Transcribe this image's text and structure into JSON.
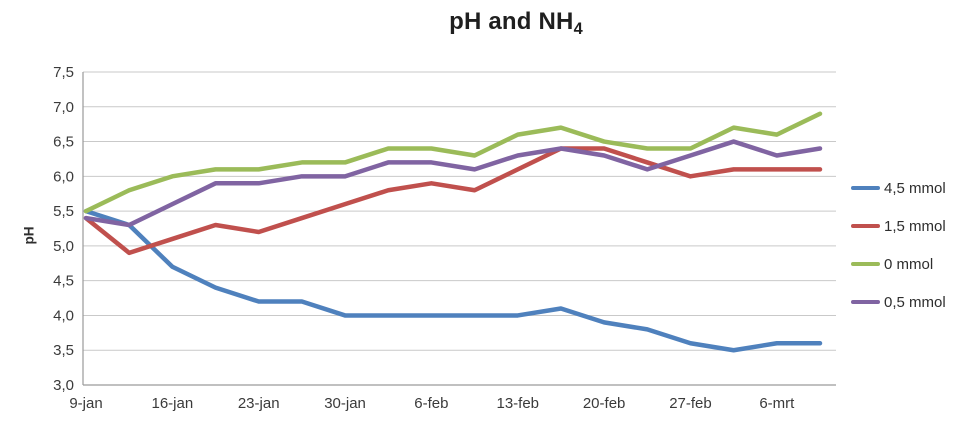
{
  "title": {
    "text": "pH and NH4",
    "main": "pH and NH",
    "sub": "4"
  },
  "y_axis_title": "pH",
  "colors": {
    "gridline": "#c9c9c9",
    "axis": "#9a9a9a",
    "tick_text": "#3a3a3a",
    "series_blue": "#4F81BD",
    "series_red": "#C0504D",
    "series_green": "#9BBB59",
    "series_purple": "#8064A2"
  },
  "chart_data": {
    "type": "line",
    "title": "pH and NH4",
    "ylabel": "pH",
    "xlabel": "",
    "ylim": [
      3.0,
      7.5
    ],
    "y_tick_step": 0.5,
    "y_tick_labels": [
      "7,5",
      "7,0",
      "6,5",
      "6,0",
      "5,5",
      "5,0",
      "4,5",
      "4,0",
      "3,5",
      "3,0"
    ],
    "x_tick_labels": [
      "9-jan",
      "16-jan",
      "23-jan",
      "30-jan",
      "6-feb",
      "13-feb",
      "20-feb",
      "27-feb",
      "6-mrt"
    ],
    "x_label_every": 2,
    "grid": "horizontal",
    "legend_position": "right",
    "series": [
      {
        "name": "4,5 mmol",
        "color": "#4F81BD",
        "values": [
          5.5,
          5.3,
          4.7,
          4.4,
          4.2,
          4.2,
          4.0,
          4.0,
          4.0,
          4.0,
          4.0,
          4.1,
          3.9,
          3.8,
          3.6,
          3.5,
          3.6,
          3.6
        ]
      },
      {
        "name": "1,5 mmol",
        "color": "#C0504D",
        "values": [
          5.4,
          4.9,
          5.1,
          5.3,
          5.2,
          5.4,
          5.6,
          5.8,
          5.9,
          5.8,
          6.1,
          6.4,
          6.4,
          6.2,
          6.0,
          6.1,
          6.1,
          6.1
        ]
      },
      {
        "name": "0 mmol",
        "color": "#9BBB59",
        "values": [
          5.5,
          5.8,
          6.0,
          6.1,
          6.1,
          6.2,
          6.2,
          6.4,
          6.4,
          6.3,
          6.6,
          6.7,
          6.5,
          6.4,
          6.4,
          6.7,
          6.6,
          6.9
        ]
      },
      {
        "name": "0,5 mmol",
        "color": "#8064A2",
        "values": [
          5.4,
          5.3,
          5.6,
          5.9,
          5.9,
          6.0,
          6.0,
          6.2,
          6.2,
          6.1,
          6.3,
          6.4,
          6.3,
          6.1,
          6.3,
          6.5,
          6.3,
          6.4
        ]
      }
    ]
  }
}
